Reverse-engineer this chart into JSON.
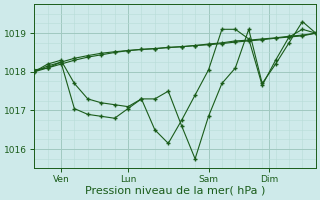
{
  "background_color": "#ceeaea",
  "grid_color_major": "#a0c8c0",
  "grid_color_minor": "#b8dcd8",
  "line_color": "#1a5c1a",
  "ylim": [
    1015.5,
    1019.75
  ],
  "xlim": [
    0,
    84
  ],
  "xlabel": "Pression niveau de la mer( hPa )",
  "xlabel_fontsize": 8,
  "ytick_values": [
    1016,
    1017,
    1018,
    1019
  ],
  "xtick_positions": [
    8,
    28,
    52,
    70
  ],
  "xtick_labels": [
    "Ven",
    "Lun",
    "Sam",
    "Dim"
  ],
  "s1_x": [
    0,
    4,
    8,
    12,
    16,
    20,
    24,
    28,
    32,
    36,
    40,
    44,
    48,
    52,
    56,
    60,
    64,
    68,
    72,
    76,
    80,
    84
  ],
  "s1_y": [
    1018.0,
    1018.15,
    1018.25,
    1018.35,
    1018.42,
    1018.48,
    1018.52,
    1018.55,
    1018.58,
    1018.6,
    1018.63,
    1018.65,
    1018.68,
    1018.7,
    1018.73,
    1018.77,
    1018.8,
    1018.83,
    1018.87,
    1018.9,
    1018.93,
    1019.0
  ],
  "s2_x": [
    0,
    4,
    8,
    12,
    16,
    20,
    24,
    28,
    32,
    36,
    40,
    44,
    48,
    52,
    56,
    60,
    64,
    68,
    72,
    76,
    80,
    84
  ],
  "s2_y": [
    1018.0,
    1018.1,
    1018.2,
    1018.3,
    1018.38,
    1018.44,
    1018.5,
    1018.55,
    1018.58,
    1018.6,
    1018.63,
    1018.65,
    1018.68,
    1018.72,
    1018.75,
    1018.8,
    1018.82,
    1018.85,
    1018.88,
    1018.92,
    1018.95,
    1019.0
  ],
  "s3_x": [
    0,
    4,
    8,
    12,
    16,
    20,
    24,
    28,
    32,
    36,
    40,
    44,
    48,
    52,
    56,
    60,
    64,
    68,
    72,
    76,
    80,
    84
  ],
  "s3_y": [
    1018.0,
    1018.2,
    1018.3,
    1017.7,
    1017.3,
    1017.2,
    1017.15,
    1017.1,
    1017.3,
    1016.5,
    1016.15,
    1016.75,
    1017.4,
    1018.05,
    1019.1,
    1019.1,
    1018.85,
    1017.65,
    1018.3,
    1018.9,
    1019.1,
    1019.0
  ],
  "s4_x": [
    0,
    4,
    8,
    12,
    16,
    20,
    24,
    28,
    32,
    36,
    40,
    44,
    48,
    52,
    56,
    60,
    64,
    68,
    72,
    76,
    80,
    84
  ],
  "s4_y": [
    1018.05,
    1018.1,
    1018.25,
    1017.05,
    1016.9,
    1016.85,
    1016.8,
    1017.05,
    1017.3,
    1017.3,
    1017.5,
    1016.6,
    1015.75,
    1016.85,
    1017.7,
    1018.1,
    1019.1,
    1017.7,
    1018.2,
    1018.75,
    1019.3,
    1019.0
  ]
}
